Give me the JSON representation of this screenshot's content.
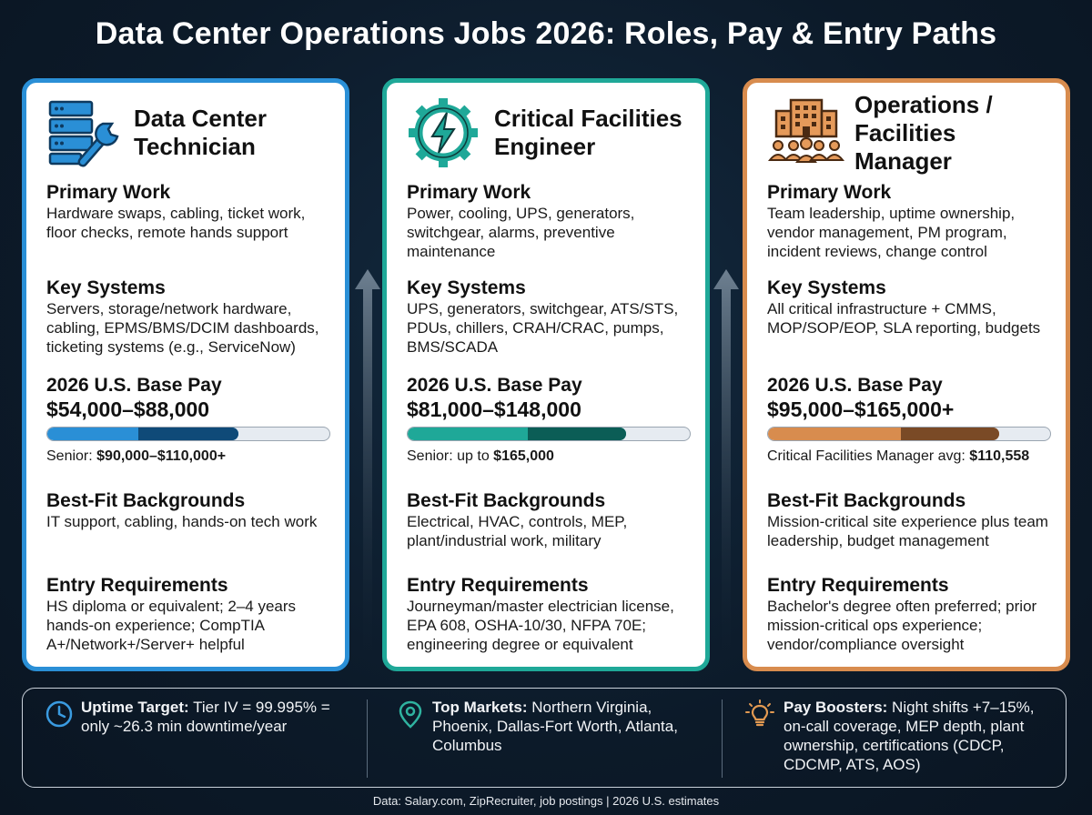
{
  "title": "Data Center Operations Jobs 2026: Roles, Pay & Entry Paths",
  "cards": [
    {
      "icon": "server-wrench-icon",
      "accent": "#2a8fd6",
      "title_line1": "Data Center",
      "title_line2": "Technician",
      "primary_work_heading": "Primary Work",
      "primary_work": "Hardware swaps, cabling, ticket work, floor checks, remote hands support",
      "key_systems_heading": "Key Systems",
      "key_systems": "Servers, storage/network hardware, cabling, EPMS/BMS/DCIM dashboards, ticketing systems (e.g., ServiceNow)",
      "pay_heading": "2026 U.S. Base Pay",
      "pay_range": "$54,000–$88,000",
      "pay_note_label": "Senior: ",
      "pay_note_value": "$90,000–$110,000+",
      "backgrounds_heading": "Best-Fit Backgrounds",
      "backgrounds": "IT support, cabling, hands-on tech work",
      "entry_heading": "Entry Requirements",
      "entry": "HS diploma or equivalent; 2–4 years hands-on experience; CompTIA A+/Network+/Server+ helpful"
    },
    {
      "icon": "gear-lightning-icon",
      "accent": "#1fa898",
      "title_line1": "Critical Facilities",
      "title_line2": "Engineer",
      "primary_work_heading": "Primary Work",
      "primary_work": "Power, cooling, UPS, generators, switchgear, alarms, preventive maintenance",
      "key_systems_heading": "Key Systems",
      "key_systems": "UPS, generators, switchgear, ATS/STS, PDUs, chillers, CRAH/CRAC, pumps, BMS/SCADA",
      "pay_heading": "2026 U.S. Base Pay",
      "pay_range": "$81,000–$148,000",
      "pay_note_label": "Senior: up to ",
      "pay_note_value": "$165,000",
      "backgrounds_heading": "Best-Fit Backgrounds",
      "backgrounds": "Electrical, HVAC, controls, MEP, plant/industrial work, military",
      "entry_heading": "Entry Requirements",
      "entry": "Journeyman/master electrician license, EPA 608, OSHA-10/30, NFPA 70E; engineering degree or equivalent"
    },
    {
      "icon": "building-team-icon",
      "accent": "#d88c4e",
      "title_line1": "Operations /",
      "title_line2": "Facilities Manager",
      "primary_work_heading": "Primary Work",
      "primary_work": "Team leadership, uptime ownership, vendor management, PM program, incident reviews, change control",
      "key_systems_heading": "Key Systems",
      "key_systems": "All critical infrastructure + CMMS, MOP/SOP/EOP, SLA reporting, budgets",
      "pay_heading": "2026 U.S. Base Pay",
      "pay_range": "$95,000–$165,000+",
      "pay_note_label": "Critical Facilities Manager avg: ",
      "pay_note_value": "$110,558",
      "backgrounds_heading": "Best-Fit Backgrounds",
      "backgrounds": "Mission-critical site experience plus team leadership, budget management",
      "entry_heading": "Entry Requirements",
      "entry": "Bachelor's degree often preferred; prior mission-critical ops experience; vendor/compliance oversight"
    }
  ],
  "footer": [
    {
      "icon": "clock-icon",
      "label": "Uptime Target:",
      "text": " Tier IV = 99.995% = only ~26.3 min downtime/year"
    },
    {
      "icon": "map-pin-icon",
      "label": "Top Markets:",
      "text": " Northern Virginia, Phoenix, Dallas-Fort Worth, Atlanta, Columbus"
    },
    {
      "icon": "lightbulb-icon",
      "label": "Pay Boosters:",
      "text": " Night shifts +7–15%, on-call coverage, MEP depth, plant ownership, certifications (CDCP, CDCMP, ATS, AOS)"
    }
  ],
  "source": "Data: Salary.com, ZipRecruiter, job postings | 2026 U.S. estimates"
}
